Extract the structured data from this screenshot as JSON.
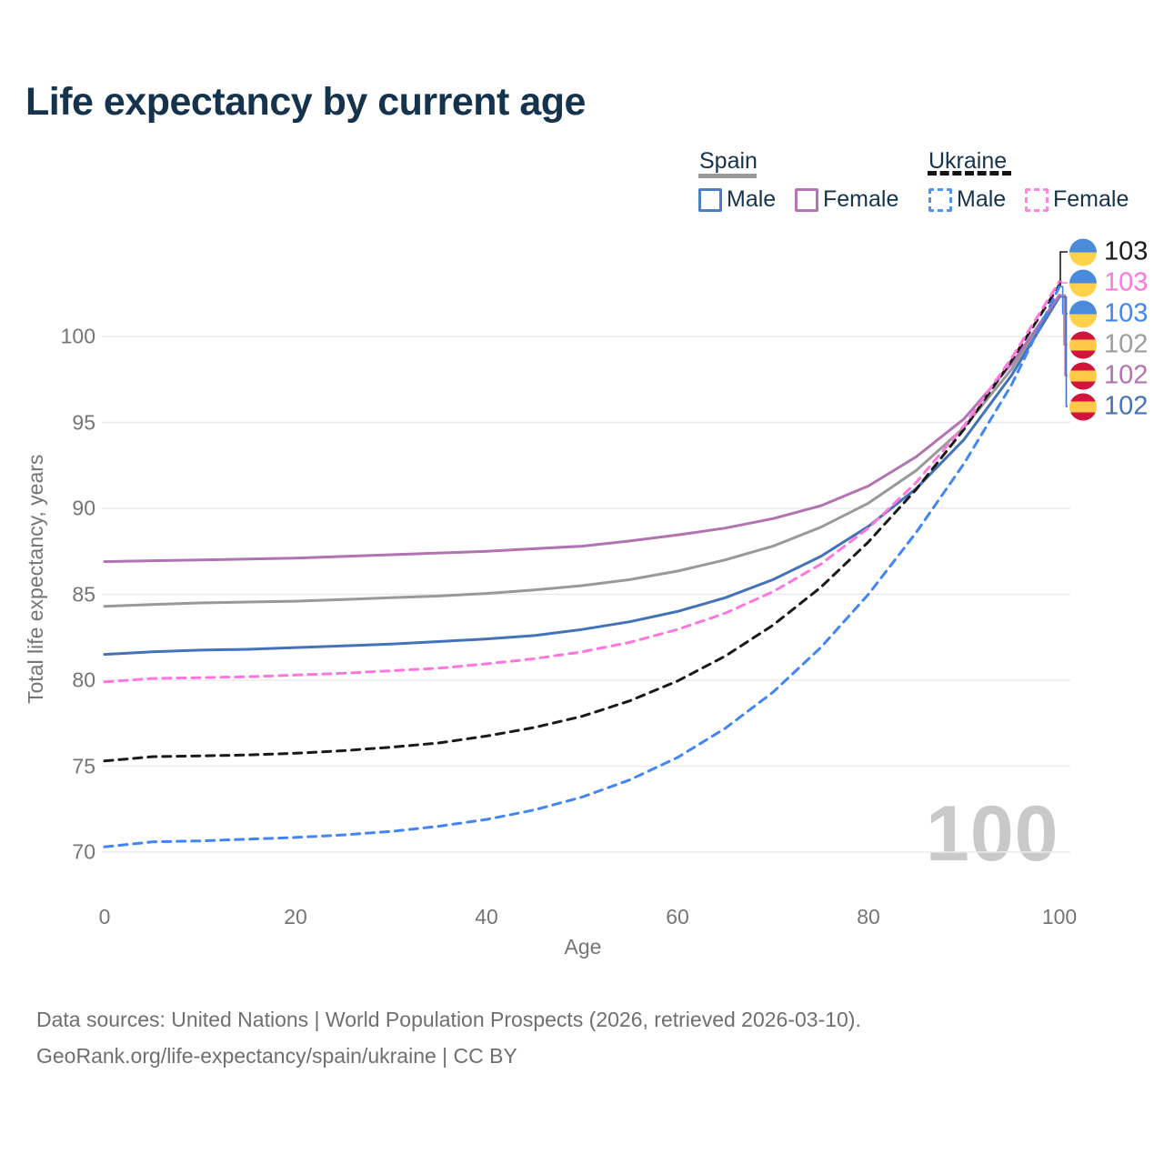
{
  "title": "Life expectancy by current age",
  "legend": {
    "spain_label": "Spain",
    "ukraine_label": "Ukraine",
    "spain_male": "Male",
    "spain_female": "Female",
    "ukraine_male": "Male",
    "ukraine_female": "Female"
  },
  "watermark": "100",
  "footer": {
    "line1": "Data sources: United Nations | World Population Prospects (2026, retrieved 2026-03-10).",
    "line2": "GeoRank.org/life-expectancy/spain/ukraine | CC BY"
  },
  "chart_data": {
    "type": "line",
    "title": "Life expectancy by current age",
    "xlabel": "Age",
    "ylabel": "Total life expectancy, years",
    "xlim": [
      0,
      100
    ],
    "ylim": [
      69,
      104
    ],
    "x_ticks": [
      0,
      20,
      40,
      60,
      80,
      100
    ],
    "y_ticks": [
      70,
      75,
      80,
      85,
      90,
      95,
      100
    ],
    "grid": "horizontal-only",
    "legend_position": "top-right",
    "ages": [
      0,
      5,
      10,
      15,
      20,
      25,
      30,
      35,
      40,
      45,
      50,
      55,
      60,
      65,
      70,
      75,
      80,
      85,
      90,
      95,
      100
    ],
    "series": [
      {
        "name": "Spain",
        "role": "both-sexes",
        "style": "solid",
        "color": "#999999",
        "values": [
          84.3,
          84.4,
          84.5,
          84.55,
          84.6,
          84.7,
          84.8,
          84.9,
          85.05,
          85.25,
          85.5,
          85.85,
          86.35,
          87.0,
          87.8,
          88.9,
          90.3,
          92.2,
          94.7,
          98.1,
          102.4
        ]
      },
      {
        "name": "Spain Male",
        "role": "male",
        "style": "solid",
        "color": "#4472b9",
        "values": [
          81.5,
          81.65,
          81.75,
          81.8,
          81.9,
          82.0,
          82.1,
          82.25,
          82.4,
          82.6,
          82.95,
          83.4,
          84.0,
          84.8,
          85.85,
          87.2,
          88.95,
          91.15,
          94.0,
          97.75,
          102.3
        ]
      },
      {
        "name": "Spain Female",
        "role": "female",
        "style": "solid",
        "color": "#b173b1",
        "values": [
          86.9,
          86.95,
          87.0,
          87.05,
          87.1,
          87.2,
          87.3,
          87.4,
          87.5,
          87.65,
          87.8,
          88.1,
          88.45,
          88.85,
          89.4,
          90.15,
          91.3,
          93.0,
          95.2,
          98.4,
          102.4
        ]
      },
      {
        "name": "Ukraine",
        "role": "both-sexes",
        "style": "dashed",
        "color": "#1a1a1a",
        "values": [
          75.3,
          75.55,
          75.6,
          75.65,
          75.75,
          75.9,
          76.1,
          76.35,
          76.75,
          77.25,
          77.9,
          78.8,
          79.95,
          81.4,
          83.2,
          85.4,
          88.05,
          91.1,
          94.6,
          98.6,
          103.0
        ]
      },
      {
        "name": "Ukraine Male",
        "role": "male",
        "style": "dashed",
        "color": "#4285f4",
        "values": [
          70.3,
          70.6,
          70.65,
          70.75,
          70.85,
          71.0,
          71.2,
          71.5,
          71.9,
          72.45,
          73.2,
          74.2,
          75.5,
          77.2,
          79.3,
          81.9,
          85.0,
          88.6,
          92.6,
          97.2,
          102.9
        ]
      },
      {
        "name": "Ukraine Female",
        "role": "female",
        "style": "dashed",
        "color": "#ff77dd",
        "values": [
          79.9,
          80.1,
          80.15,
          80.2,
          80.3,
          80.4,
          80.55,
          80.7,
          80.95,
          81.25,
          81.65,
          82.2,
          82.95,
          83.9,
          85.15,
          86.75,
          88.85,
          91.5,
          94.8,
          98.75,
          103.2
        ]
      }
    ],
    "end_labels": [
      {
        "value": "103",
        "flag": "ukraine",
        "series_index": 3,
        "color": "#1a1a1a"
      },
      {
        "value": "103",
        "flag": "ukraine",
        "series_index": 5,
        "color": "#ff77dd"
      },
      {
        "value": "103",
        "flag": "ukraine",
        "series_index": 4,
        "color": "#4285f4"
      },
      {
        "value": "102",
        "flag": "spain",
        "series_index": 0,
        "color": "#9e9e9e"
      },
      {
        "value": "102",
        "flag": "spain",
        "series_index": 2,
        "color": "#b173b1"
      },
      {
        "value": "102",
        "flag": "spain",
        "series_index": 1,
        "color": "#4472b9"
      }
    ]
  }
}
